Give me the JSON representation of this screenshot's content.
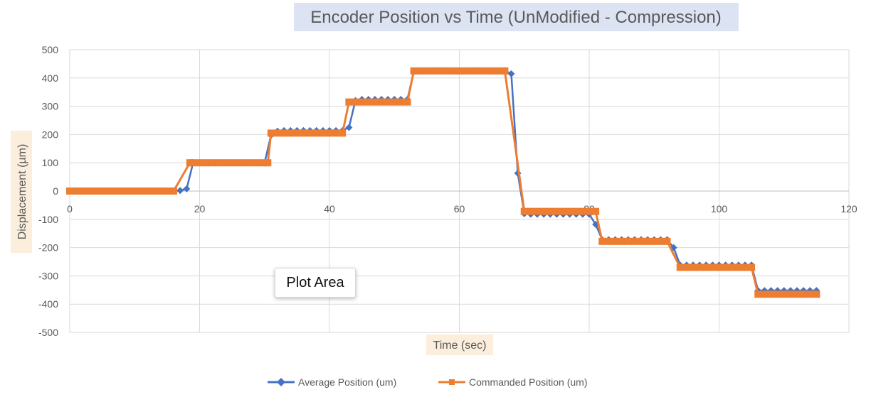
{
  "chart_data": {
    "type": "line",
    "title": "Encoder Position vs Time (UnModified - Compression)",
    "xlabel": "Time (sec)",
    "ylabel": "Displacement  (µm)",
    "xlim": [
      0,
      120
    ],
    "ylim": [
      -500,
      500
    ],
    "x_ticks": [
      0,
      20,
      40,
      60,
      80,
      100,
      120
    ],
    "y_ticks": [
      500,
      400,
      300,
      200,
      100,
      0,
      -100,
      -200,
      -300,
      -400,
      -500
    ],
    "grid": true,
    "legend_position": "bottom",
    "series": [
      {
        "name": "Average Position (um)",
        "color": "#4472C4",
        "marker": "diamond",
        "x": [
          0,
          1,
          2,
          3,
          4,
          5,
          6,
          7,
          8,
          9,
          10,
          11,
          12,
          13,
          14,
          15,
          16,
          17,
          18,
          19,
          20,
          21,
          22,
          23,
          24,
          25,
          26,
          27,
          28,
          29,
          30,
          31,
          32,
          33,
          34,
          35,
          36,
          37,
          38,
          39,
          40,
          41,
          42,
          43,
          44,
          45,
          46,
          47,
          48,
          49,
          50,
          51,
          52,
          53,
          54,
          55,
          56,
          57,
          58,
          59,
          60,
          61,
          62,
          63,
          64,
          65,
          66,
          67,
          68,
          69,
          70,
          71,
          72,
          73,
          74,
          75,
          76,
          77,
          78,
          79,
          80,
          81,
          82,
          83,
          84,
          85,
          86,
          87,
          88,
          89,
          90,
          91,
          92,
          93,
          94,
          95,
          96,
          97,
          98,
          99,
          100,
          101,
          102,
          103,
          104,
          105,
          106,
          107,
          108,
          109,
          110,
          111,
          112,
          113,
          114,
          115
        ],
        "values": [
          0,
          0,
          0,
          0,
          0,
          0,
          0,
          0,
          0,
          0,
          0,
          0,
          0,
          0,
          0,
          0,
          0,
          2,
          8,
          100,
          100,
          100,
          100,
          100,
          100,
          100,
          100,
          100,
          100,
          100,
          100,
          198,
          212,
          214,
          214,
          214,
          214,
          214,
          214,
          214,
          214,
          214,
          214,
          225,
          320,
          324,
          324,
          324,
          324,
          324,
          324,
          324,
          324,
          424,
          426,
          426,
          426,
          426,
          426,
          426,
          426,
          426,
          426,
          426,
          426,
          426,
          426,
          426,
          415,
          63,
          -80,
          -82,
          -82,
          -82,
          -82,
          -82,
          -82,
          -82,
          -82,
          -82,
          -82,
          -118,
          -172,
          -172,
          -172,
          -172,
          -172,
          -172,
          -172,
          -172,
          -172,
          -172,
          -172,
          -200,
          -262,
          -262,
          -262,
          -262,
          -262,
          -262,
          -262,
          -262,
          -262,
          -262,
          -262,
          -262,
          -352,
          -352,
          -352,
          -352,
          -352,
          -352,
          -352,
          -352,
          -352,
          -352
        ]
      },
      {
        "name": "Commanded Position (um)",
        "color": "#ED7D31",
        "marker": "square",
        "x": [
          0,
          1,
          2,
          3,
          4,
          5,
          6,
          7,
          8,
          9,
          10,
          11,
          12,
          13,
          14,
          15,
          16,
          18.5,
          19,
          20,
          21,
          22,
          23,
          24,
          25,
          26,
          27,
          28,
          29,
          30,
          30.5,
          31,
          32,
          33,
          34,
          35,
          36,
          37,
          38,
          39,
          40,
          41,
          42,
          43,
          44,
          45,
          46,
          47,
          48,
          49,
          50,
          51,
          52,
          53,
          54,
          55,
          56,
          57,
          58,
          59,
          60,
          61,
          62,
          63,
          64,
          65,
          66,
          67,
          70,
          71,
          72,
          73,
          74,
          75,
          76,
          77,
          78,
          79,
          80,
          81,
          82,
          83,
          84,
          85,
          86,
          87,
          88,
          89,
          90,
          91,
          92,
          94,
          95,
          96,
          97,
          98,
          99,
          100,
          101,
          102,
          103,
          104,
          105,
          106,
          107,
          108,
          109,
          110,
          111,
          112,
          113,
          114,
          115
        ],
        "values": [
          0,
          0,
          0,
          0,
          0,
          0,
          0,
          0,
          0,
          0,
          0,
          0,
          0,
          0,
          0,
          0,
          0,
          100,
          100,
          100,
          100,
          100,
          100,
          100,
          100,
          100,
          100,
          100,
          100,
          100,
          100,
          205,
          205,
          205,
          205,
          205,
          205,
          205,
          205,
          205,
          205,
          205,
          205,
          315,
          315,
          315,
          315,
          315,
          315,
          315,
          315,
          315,
          315,
          425,
          425,
          425,
          425,
          425,
          425,
          425,
          425,
          425,
          425,
          425,
          425,
          425,
          425,
          425,
          -72,
          -72,
          -72,
          -72,
          -72,
          -72,
          -72,
          -72,
          -72,
          -72,
          -72,
          -72,
          -178,
          -178,
          -178,
          -178,
          -178,
          -178,
          -178,
          -178,
          -178,
          -178,
          -178,
          -270,
          -270,
          -270,
          -270,
          -270,
          -270,
          -270,
          -270,
          -270,
          -270,
          -270,
          -270,
          -365,
          -365,
          -365,
          -365,
          -365,
          -365,
          -365,
          -365,
          -365,
          -365
        ]
      }
    ]
  },
  "tooltip": {
    "label": "Plot Area"
  },
  "colors": {
    "title_highlight": "#DCE3F3",
    "axis_label_highlight": "#FBEEDC",
    "gridline": "#D9D9D9",
    "text": "#595959"
  }
}
